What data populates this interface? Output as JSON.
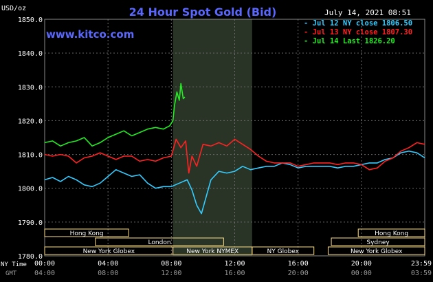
{
  "chart_data": {
    "type": "line",
    "title": "24 Hour Spot Gold (Bid)",
    "watermark": "www.kitco.com",
    "date_label": "July 14, 2021 08:51",
    "y_unit": "USD/oz",
    "ylim": [
      1780,
      1850
    ],
    "y_ticks": [
      "1850.0",
      "1840.0",
      "1830.0",
      "1820.0",
      "1810.0",
      "1800.0",
      "1790.0",
      "1780.0"
    ],
    "x_row_label_ny": "NY Time",
    "x_row_label_gmt": "GMT",
    "x_ticks_ny": [
      "00:00",
      "04:00",
      "08:00",
      "12:00",
      "16:00",
      "20:00",
      "23:59"
    ],
    "x_ticks_gmt": [
      "04:00",
      "08:00",
      "12:00",
      "16:00",
      "20:00",
      "00:00",
      "03:59"
    ],
    "xlim_hours": [
      0,
      24
    ],
    "grid": true,
    "colors": {
      "background": "#000000",
      "grid": "#6a6a6a",
      "axis_text": "#ffffff",
      "gmt_text": "#9a9a9a",
      "title": "#5a67ff",
      "shade": "#2a3426",
      "market_bar": "#ffe08a",
      "market_text": "#1a1a1a"
    },
    "shaded_hours": [
      8.1,
      13.1
    ],
    "legend": [
      {
        "text": "- Jul 12 NY close 1806.50",
        "color": "#33ccff"
      },
      {
        "text": "- Jul 13 NY close 1807.30",
        "color": "#ff2222"
      },
      {
        "text": "- Jul 14 Last 1826.20",
        "color": "#22ee22"
      }
    ],
    "markets": [
      {
        "name": "Hong Kong",
        "start": 0,
        "end": 5.3,
        "row": 0
      },
      {
        "name": "Hong Kong",
        "start": 19.8,
        "end": 24,
        "row": 0
      },
      {
        "name": "London",
        "start": 3.2,
        "end": 11.3,
        "row": 1
      },
      {
        "name": "Sydney",
        "start": 18.1,
        "end": 24,
        "row": 1
      },
      {
        "name": "New York Globex",
        "start": 0,
        "end": 8.1,
        "row": 2
      },
      {
        "name": "New York NYMEX",
        "start": 8.1,
        "end": 13.1,
        "row": 2
      },
      {
        "name": "NY Globex",
        "start": 13.1,
        "end": 17.0,
        "row": 2
      },
      {
        "name": "New York Globex",
        "start": 17.9,
        "end": 24,
        "row": 2
      }
    ],
    "series": [
      {
        "name": "Jul 12",
        "color": "#33ccff",
        "x": [
          0,
          0.5,
          1,
          1.5,
          2,
          2.5,
          3,
          3.5,
          4,
          4.5,
          5,
          5.5,
          6,
          6.5,
          7,
          7.5,
          8,
          8.5,
          9,
          9.3,
          9.6,
          9.9,
          10.2,
          10.5,
          11,
          11.5,
          12,
          12.5,
          13,
          13.5,
          14,
          14.5,
          15,
          15.5,
          16,
          16.5,
          17,
          17.5,
          18,
          18.5,
          19,
          19.5,
          20,
          20.5,
          21,
          21.5,
          22,
          22.5,
          23,
          23.5,
          24
        ],
        "y": [
          1802.5,
          1803.2,
          1802.0,
          1803.5,
          1802.5,
          1801.0,
          1800.5,
          1801.5,
          1803.5,
          1805.5,
          1804.5,
          1803.5,
          1804.0,
          1801.5,
          1800.0,
          1800.5,
          1800.5,
          1801.5,
          1802.5,
          1799.5,
          1795.0,
          1792.5,
          1797.5,
          1802.5,
          1805.0,
          1804.5,
          1805.0,
          1806.5,
          1805.5,
          1806.0,
          1806.5,
          1806.5,
          1807.5,
          1807.0,
          1806.0,
          1806.5,
          1806.5,
          1806.5,
          1806.5,
          1806.0,
          1806.5,
          1806.5,
          1807.0,
          1807.5,
          1807.5,
          1808.5,
          1809.0,
          1810.5,
          1811.0,
          1810.5,
          1809.0
        ]
      },
      {
        "name": "Jul 13",
        "color": "#ff2222",
        "x": [
          0,
          0.5,
          1,
          1.5,
          2,
          2.5,
          3,
          3.5,
          4,
          4.5,
          5,
          5.5,
          6,
          6.5,
          7,
          7.5,
          8,
          8.3,
          8.6,
          8.9,
          9.1,
          9.3,
          9.6,
          10,
          10.5,
          11,
          11.5,
          12,
          12.5,
          13,
          13.5,
          14,
          14.5,
          15,
          15.5,
          16,
          16.5,
          17,
          17.5,
          18,
          18.5,
          19,
          19.5,
          20,
          20.5,
          21,
          21.5,
          22,
          22.5,
          23,
          23.5,
          24
        ],
        "y": [
          1810.0,
          1809.5,
          1810.0,
          1809.5,
          1807.5,
          1809.0,
          1809.5,
          1810.5,
          1809.5,
          1808.5,
          1809.5,
          1809.5,
          1808.0,
          1808.5,
          1808.0,
          1809.0,
          1809.5,
          1814.5,
          1812.0,
          1814.0,
          1804.5,
          1809.5,
          1806.5,
          1813.0,
          1812.5,
          1813.5,
          1812.5,
          1814.5,
          1813.0,
          1811.5,
          1809.5,
          1808.0,
          1807.5,
          1807.5,
          1807.5,
          1806.5,
          1807.0,
          1807.5,
          1807.5,
          1807.5,
          1807.0,
          1807.5,
          1807.5,
          1807.0,
          1805.5,
          1806.0,
          1808.0,
          1809.0,
          1811.0,
          1812.0,
          1813.5,
          1813.0
        ]
      },
      {
        "name": "Jul 14",
        "color": "#22ee22",
        "x": [
          0,
          0.5,
          1,
          1.5,
          2,
          2.5,
          3,
          3.5,
          4,
          4.5,
          5,
          5.5,
          6,
          6.5,
          7,
          7.5,
          7.9,
          8.1,
          8.2,
          8.35,
          8.5,
          8.6,
          8.75,
          8.85
        ],
        "y": [
          1813.5,
          1814.0,
          1812.5,
          1813.5,
          1814.0,
          1815.0,
          1812.5,
          1813.5,
          1815.0,
          1816.0,
          1817.0,
          1815.5,
          1816.5,
          1817.5,
          1818.0,
          1817.5,
          1818.5,
          1820.0,
          1824.5,
          1828.5,
          1826.0,
          1831.0,
          1826.5,
          1827.0
        ]
      }
    ]
  }
}
